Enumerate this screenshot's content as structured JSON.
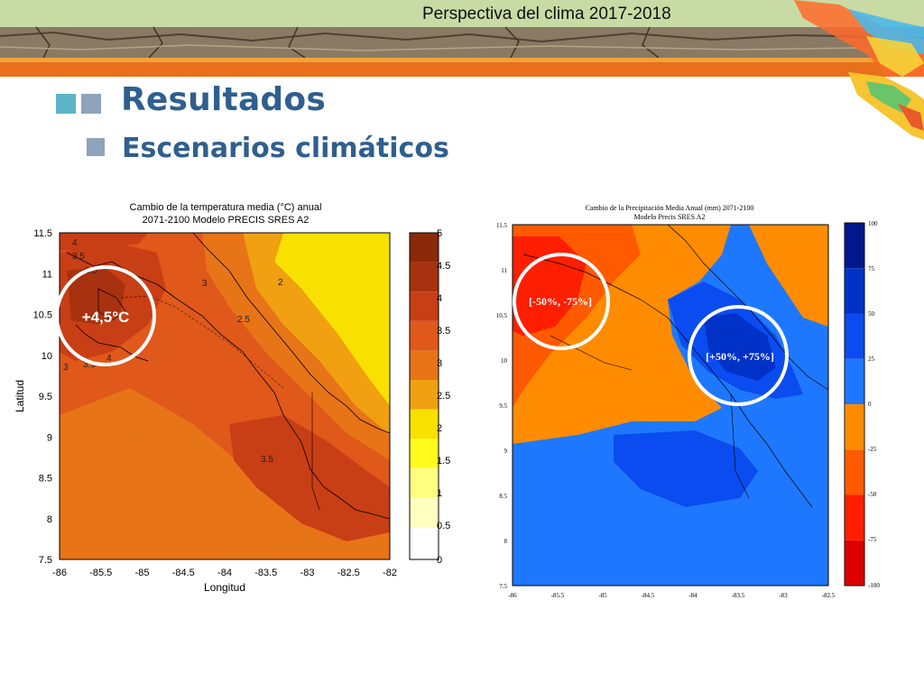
{
  "header": {
    "title": "Perspectiva del clima 2017-2018",
    "colors": {
      "band": "#c9dba5",
      "soil": "#8a7a63",
      "accent": "#e8701b"
    }
  },
  "slide": {
    "heading": "Resultados",
    "subheading": "Escenarios climáticos",
    "colors": {
      "heading": "#2f5f8f",
      "square_teal": "#5fb3c8",
      "square_gray": "#8ea3bd"
    }
  },
  "maps": [
    {
      "title_line1": "Cambio de la temperatura media (°C) anual",
      "title_line2": "2071-2100 Modelo PRECIS SRES A2",
      "xlabel": "Longitud",
      "ylabel": "Latitud",
      "x_ticks": [
        "-86",
        "-85.5",
        "-85",
        "-84.5",
        "-84",
        "-83.5",
        "-83",
        "-82.5",
        "-82"
      ],
      "y_ticks": [
        "11.5",
        "11",
        "10.5",
        "10",
        "9.5",
        "9",
        "8.5",
        "8",
        "7.5"
      ],
      "colorbar_labels": [
        "5",
        "4.5",
        "4",
        "3.5",
        "3",
        "2.5",
        "2",
        "1.5",
        "1",
        "0.5",
        "0"
      ],
      "colorbar_colors": [
        "#8b2a0a",
        "#a83210",
        "#c83e15",
        "#e0581a",
        "#e87418",
        "#f0a010",
        "#f8e000",
        "#fffc20",
        "#ffff80",
        "#ffffc0"
      ],
      "contour_labels": [
        "4",
        "3.5",
        "3.5",
        "3",
        "2",
        "2.5",
        "3.5",
        "3.5",
        "4",
        "3"
      ],
      "callout": "+4,5°C"
    },
    {
      "title_line1": "Cambio de la Precipitación Media Anual (mm) 2071-2100",
      "title_line2": "Modelo Precis SRES A2",
      "x_ticks": [
        "-86",
        "-85.5",
        "-85",
        "-84.5",
        "-84",
        "-83.5",
        "-83",
        "-82.5"
      ],
      "y_ticks": [
        "11.5",
        "11",
        "10.5",
        "10",
        "9.5",
        "9",
        "8.5",
        "8",
        "7.5"
      ],
      "colorbar_labels": [
        "100",
        "75",
        "50",
        "25",
        "0",
        "-25",
        "-50",
        "-75",
        "-100"
      ],
      "colorbar_colors": [
        "#00188c",
        "#0032c8",
        "#0a4cf0",
        "#1e78ff",
        "#ff8c00",
        "#ff5a00",
        "#ff1e00",
        "#dc0000"
      ],
      "callout_dry": "[-50%,  -75%]",
      "callout_wet": "[+50%,  +75%]"
    }
  ]
}
